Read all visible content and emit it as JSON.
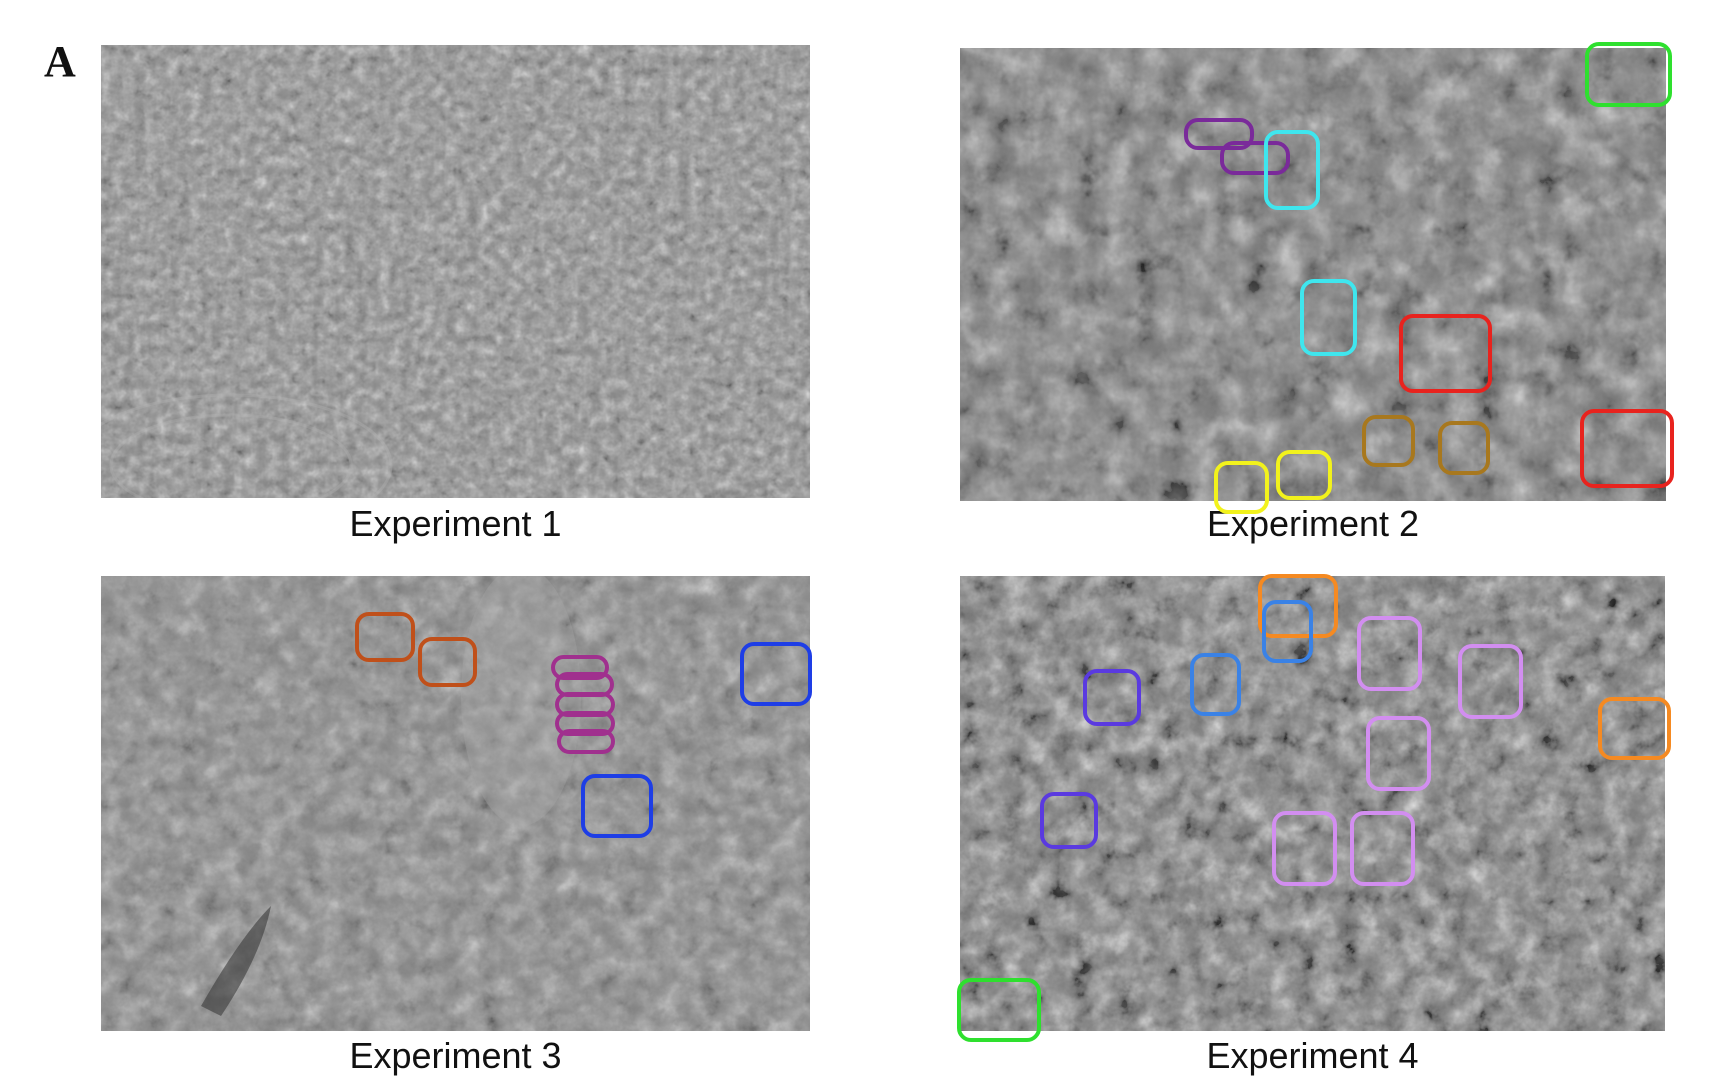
{
  "panel_letter": "A",
  "panels": [
    {
      "caption": "Experiment 1"
    },
    {
      "caption": "Experiment 2"
    },
    {
      "caption": "Experiment 3"
    },
    {
      "caption": "Experiment 4"
    }
  ],
  "colors": {
    "background": "#ffffff",
    "exp1_tone": "#8a8a8a",
    "exp2_tone": "#7a7a7a",
    "exp3_tone": "#858585",
    "exp4_tone": "#7c7c7c",
    "marker_green": "#2ee02e",
    "marker_purple": "#7a2a9a",
    "marker_cyan": "#3fe6ee",
    "marker_red": "#e8231e",
    "marker_olive": "#a8781e",
    "marker_yellow": "#f2f21c",
    "marker_rust": "#c0501a",
    "marker_magenta": "#a0308e",
    "marker_blue": "#1e3ee6",
    "marker_orange": "#f58a22",
    "marker_sky": "#3a82e6",
    "marker_indigo": "#5a3ae0",
    "marker_lilac": "#d28ef0"
  }
}
